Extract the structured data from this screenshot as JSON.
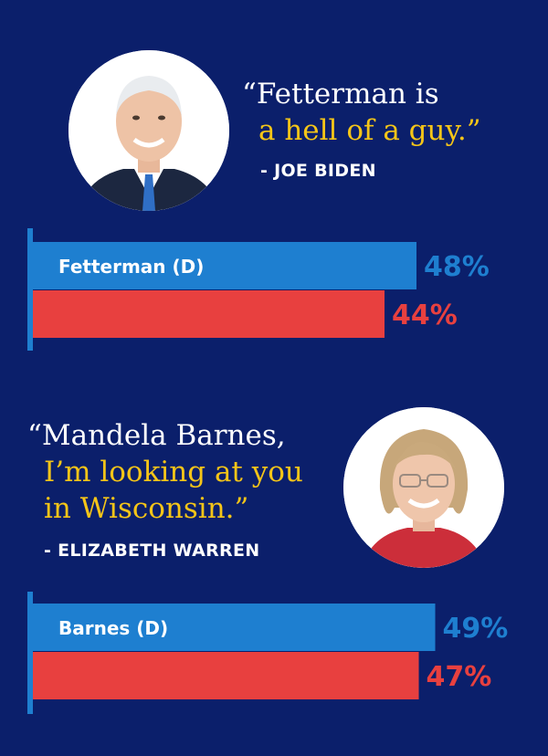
{
  "quote1": {
    "line1": "“Fetterman is",
    "line2": "a hell of a guy.”",
    "attribution": "- JOE BIDEN"
  },
  "quote2": {
    "line1": "“Mandela Barnes,",
    "line2": "I’m looking at you",
    "line3": "in Wisconsin.”",
    "attribution": "- ELIZABETH WARREN"
  },
  "colors": {
    "background": "#0b1f6b",
    "dem": "#1e7fd0",
    "rep": "#e8403f",
    "highlight": "#f5c518"
  },
  "chart_data": [
    {
      "type": "bar",
      "orientation": "horizontal",
      "unit": "%",
      "series": [
        {
          "name": "Fetterman (D)",
          "value": 48,
          "label": "48%",
          "color": "#1e7fd0"
        },
        {
          "name": "",
          "value": 44,
          "label": "44%",
          "color": "#e8403f"
        }
      ]
    },
    {
      "type": "bar",
      "orientation": "horizontal",
      "unit": "%",
      "series": [
        {
          "name": "Barnes (D)",
          "value": 49,
          "label": "49%",
          "color": "#1e7fd0"
        },
        {
          "name": "",
          "value": 47,
          "label": "47%",
          "color": "#e8403f"
        }
      ]
    }
  ]
}
